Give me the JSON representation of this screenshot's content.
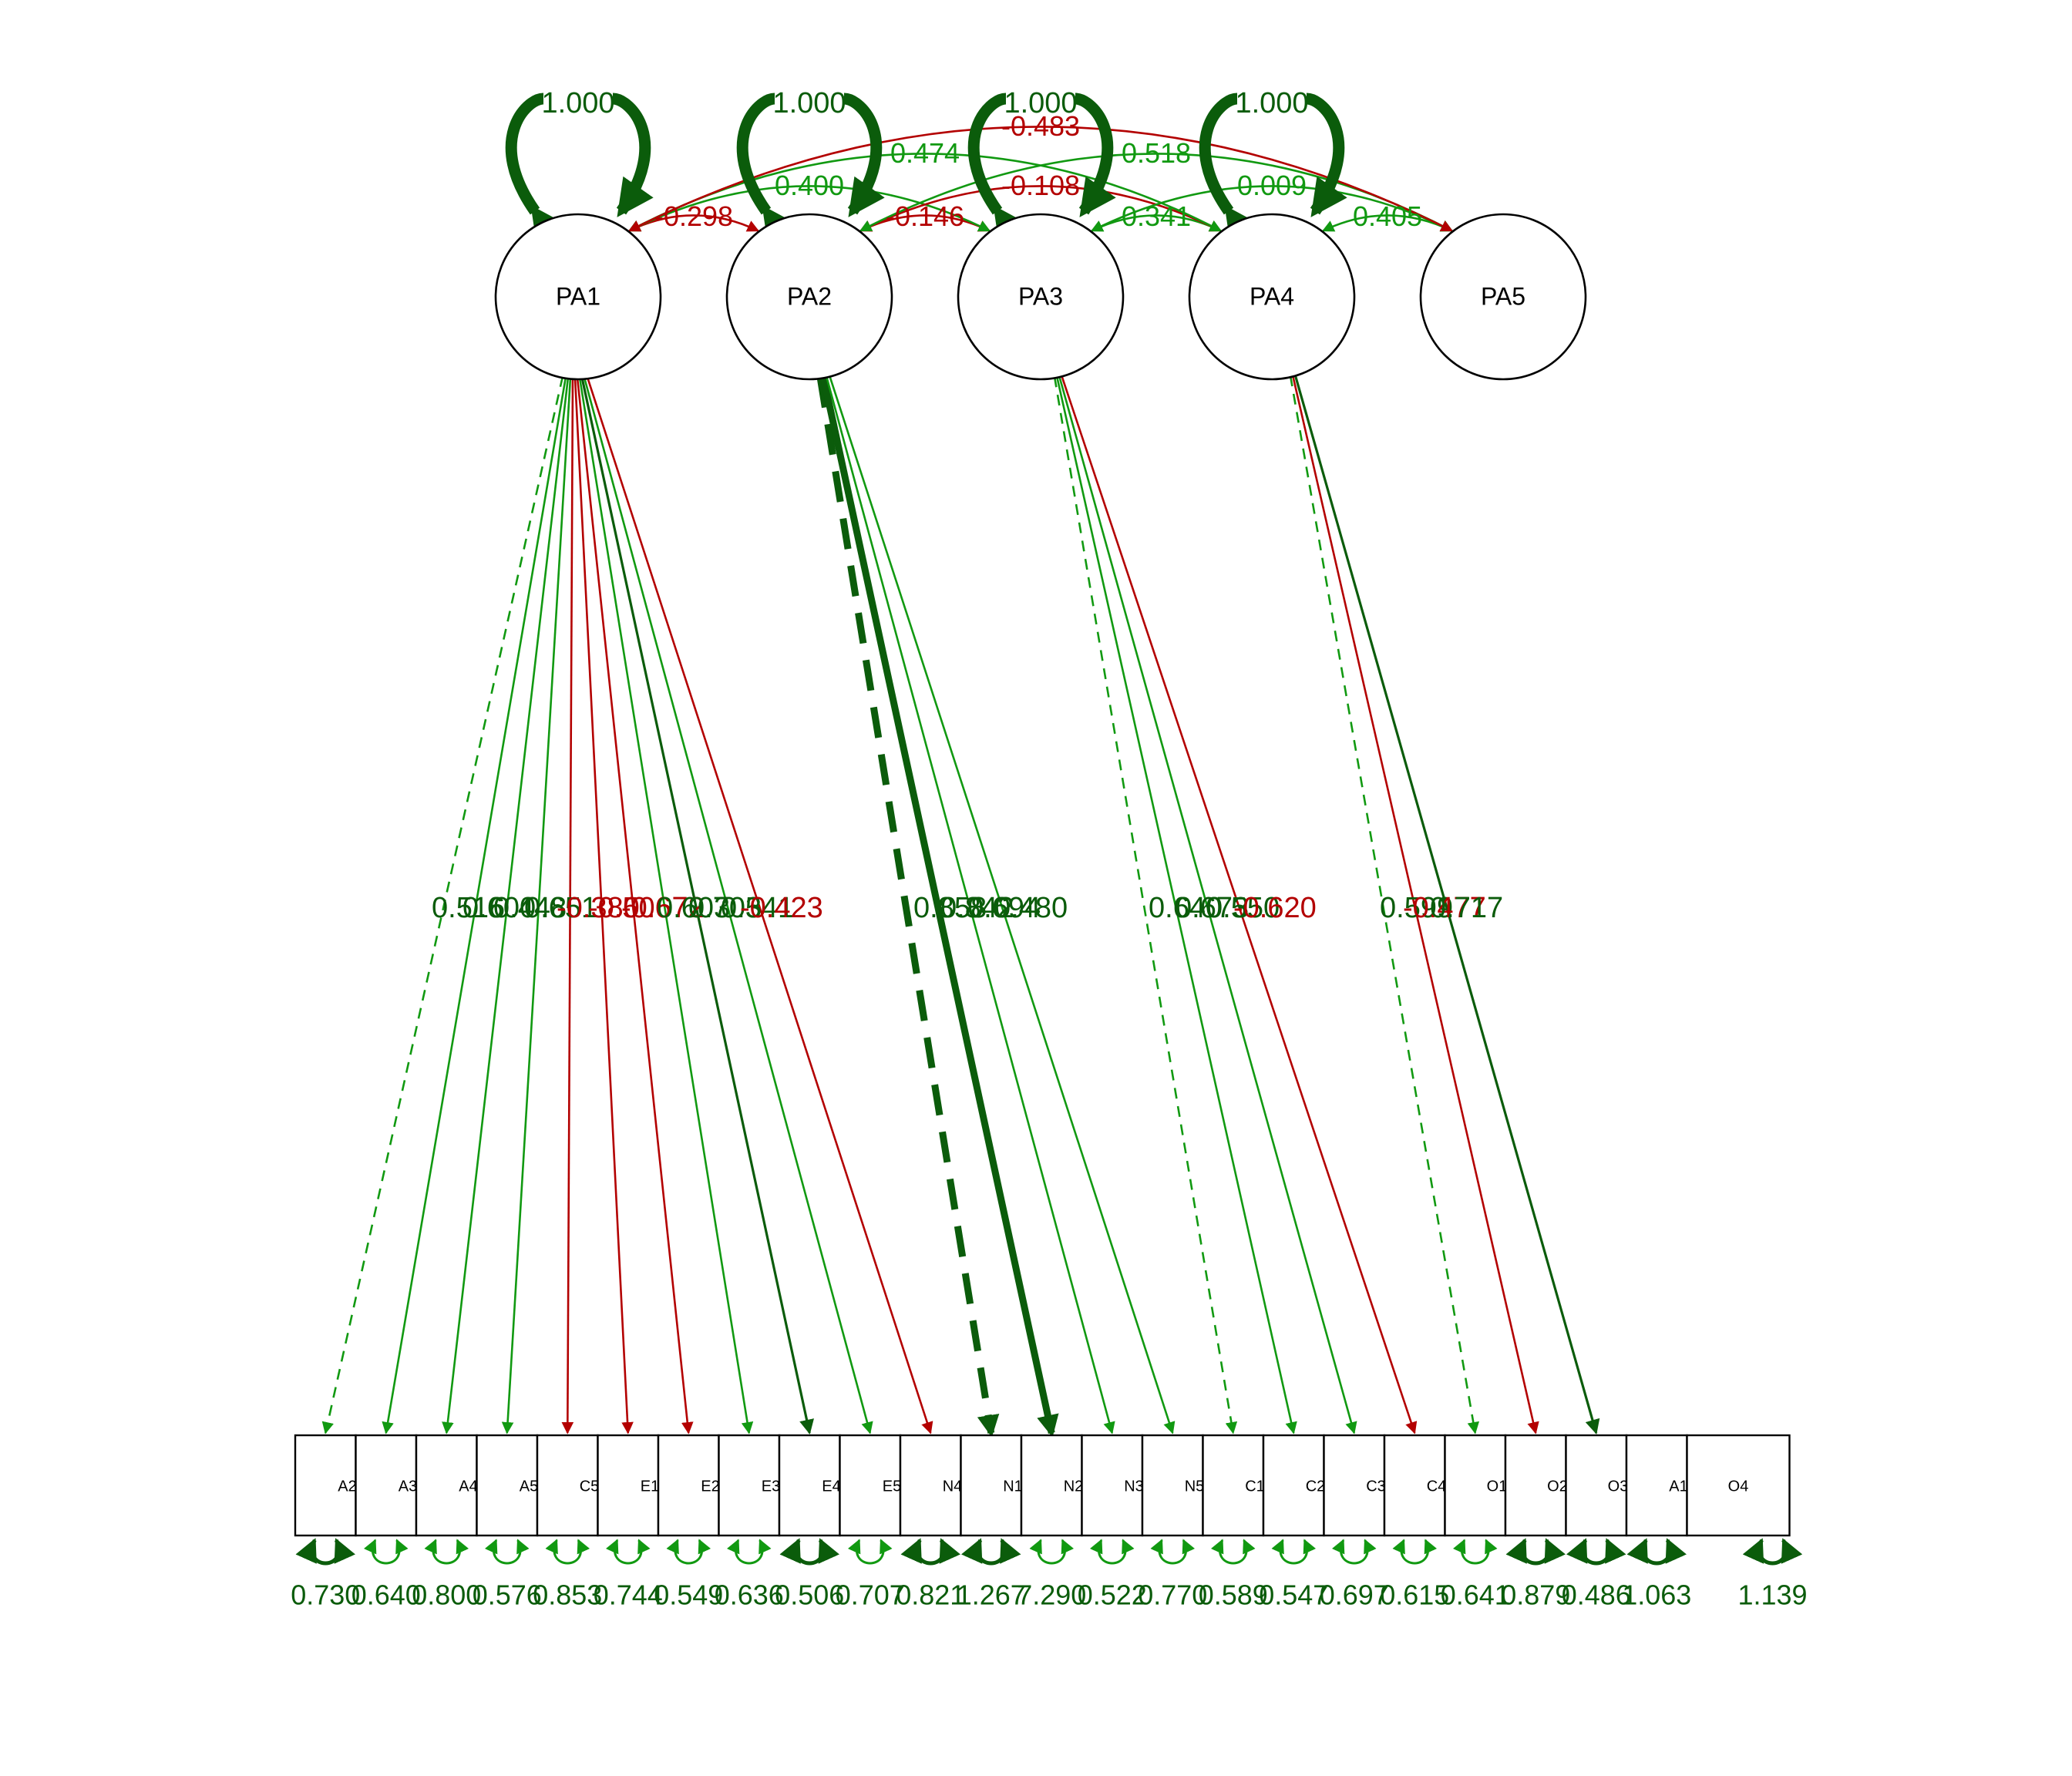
{
  "colors": {
    "positive": "#119911",
    "positive_strong": "#0b5c0b",
    "negative": "#b30000",
    "outline": "#000000",
    "background": "#ffffff"
  },
  "latents": [
    {
      "id": "PA1",
      "label": "PA1",
      "variance": "1.000"
    },
    {
      "id": "PA2",
      "label": "PA2",
      "variance": "1.000"
    },
    {
      "id": "PA3",
      "label": "PA3",
      "variance": "1.000"
    },
    {
      "id": "PA4",
      "label": "PA4",
      "variance": "1.000"
    },
    {
      "id": "PA5",
      "label": "PA5",
      "variance": ""
    }
  ],
  "observed": [
    {
      "id": "A2",
      "label": "A2",
      "residual": "0.730"
    },
    {
      "id": "A3",
      "label": "A3",
      "residual": "0.640"
    },
    {
      "id": "A4",
      "label": "A4",
      "residual": "0.800"
    },
    {
      "id": "A5",
      "label": "A5",
      "residual": "0.576"
    },
    {
      "id": "C5",
      "label": "C5",
      "residual": "0.853"
    },
    {
      "id": "E1",
      "label": "E1",
      "residual": "0.744"
    },
    {
      "id": "E2",
      "label": "E2",
      "residual": "0.549"
    },
    {
      "id": "E3",
      "label": "E3",
      "residual": "0.636"
    },
    {
      "id": "E4",
      "label": "E4",
      "residual": "0.506"
    },
    {
      "id": "E5",
      "label": "E5",
      "residual": "0.707"
    },
    {
      "id": "N4",
      "label": "N4",
      "residual": "0.821"
    },
    {
      "id": "N1",
      "label": "N1",
      "residual": "1.267"
    },
    {
      "id": "N2",
      "label": "N2",
      "residual": "7.290"
    },
    {
      "id": "N3",
      "label": "N3",
      "residual": "0.522"
    },
    {
      "id": "N5",
      "label": "N5",
      "residual": "0.770"
    },
    {
      "id": "C1",
      "label": "C1",
      "residual": "0.589"
    },
    {
      "id": "C2",
      "label": "C2",
      "residual": "0.547"
    },
    {
      "id": "C3",
      "label": "C3",
      "residual": "0.697"
    },
    {
      "id": "C4",
      "label": "C4",
      "residual": "0.615"
    },
    {
      "id": "O1",
      "label": "O1",
      "residual": "0.641"
    },
    {
      "id": "O2",
      "label": "O2",
      "residual": "0.879"
    },
    {
      "id": "O3",
      "label": "O3",
      "residual": "0.486"
    },
    {
      "id": "A1",
      "label": "A1",
      "residual": "1.063"
    },
    {
      "id": "O4",
      "label": "O4",
      "residual": "1.139"
    }
  ],
  "loadings": [
    {
      "from": "PA1",
      "to": "A2",
      "sign": "pos",
      "dashed": true,
      "strong": false
    },
    {
      "from": "PA1",
      "to": "A3",
      "sign": "pos",
      "dashed": false,
      "strong": false
    },
    {
      "from": "PA1",
      "to": "A4",
      "sign": "pos",
      "dashed": false,
      "strong": false
    },
    {
      "from": "PA1",
      "to": "A5",
      "sign": "pos",
      "dashed": false,
      "strong": false
    },
    {
      "from": "PA1",
      "to": "C5",
      "sign": "neg",
      "dashed": false,
      "strong": false
    },
    {
      "from": "PA1",
      "to": "E1",
      "sign": "neg",
      "dashed": false,
      "strong": false
    },
    {
      "from": "PA1",
      "to": "E2",
      "sign": "neg",
      "dashed": false,
      "strong": false
    },
    {
      "from": "PA1",
      "to": "E3",
      "sign": "pos",
      "dashed": false,
      "strong": false
    },
    {
      "from": "PA1",
      "to": "E4",
      "sign": "pos",
      "dashed": false,
      "strong": true
    },
    {
      "from": "PA1",
      "to": "E5",
      "sign": "pos",
      "dashed": false,
      "strong": false
    },
    {
      "from": "PA1",
      "to": "N4",
      "sign": "neg",
      "dashed": false,
      "strong": false
    },
    {
      "from": "PA2",
      "to": "N1",
      "sign": "pos",
      "dashed": true,
      "strong": true
    },
    {
      "from": "PA2",
      "to": "N2",
      "sign": "pos",
      "dashed": false,
      "strong": true
    },
    {
      "from": "PA2",
      "to": "N3",
      "sign": "pos",
      "dashed": false,
      "strong": false
    },
    {
      "from": "PA2",
      "to": "N5",
      "sign": "pos",
      "dashed": false,
      "strong": false
    },
    {
      "from": "PA3",
      "to": "C1",
      "sign": "pos",
      "dashed": true,
      "strong": false
    },
    {
      "from": "PA3",
      "to": "C2",
      "sign": "pos",
      "dashed": false,
      "strong": false
    },
    {
      "from": "PA3",
      "to": "C3",
      "sign": "pos",
      "dashed": false,
      "strong": false
    },
    {
      "from": "PA3",
      "to": "C4",
      "sign": "neg",
      "dashed": false,
      "strong": false
    },
    {
      "from": "PA4",
      "to": "O1",
      "sign": "pos",
      "dashed": true,
      "strong": false
    },
    {
      "from": "PA4",
      "to": "O2",
      "sign": "neg",
      "dashed": false,
      "strong": false
    },
    {
      "from": "PA4",
      "to": "O3",
      "sign": "pos",
      "dashed": false,
      "strong": true
    }
  ],
  "loading_labels": [
    {
      "text": "0.516",
      "sign": "pos"
    },
    {
      "text": "0.600",
      "sign": "pos"
    },
    {
      "text": "0.448",
      "sign": "pos"
    },
    {
      "text": "0.651",
      "sign": "pos"
    },
    {
      "text": "-0.380",
      "sign": "neg"
    },
    {
      "text": "-0.506",
      "sign": "neg"
    },
    {
      "text": "-0.672",
      "sign": "neg"
    },
    {
      "text": "0.603",
      "sign": "pos"
    },
    {
      "text": "0.703",
      "sign": "pos"
    },
    {
      "text": "0.541",
      "sign": "pos"
    },
    {
      "text": "-0.423",
      "sign": "neg"
    },
    {
      "text": "0.858",
      "sign": "pos"
    },
    {
      "text": "0.842",
      "sign": "pos"
    },
    {
      "text": "0.694",
      "sign": "pos"
    },
    {
      "text": "0.480",
      "sign": "pos"
    },
    {
      "text": "0.640",
      "sign": "pos"
    },
    {
      "text": "0.673",
      "sign": "pos"
    },
    {
      "text": "0.550",
      "sign": "pos"
    },
    {
      "text": "-0.620",
      "sign": "neg"
    },
    {
      "text": "0.599",
      "sign": "pos"
    },
    {
      "text": "-0.477",
      "sign": "neg"
    },
    {
      "text": "0.717",
      "sign": "pos"
    }
  ],
  "covariances": [
    {
      "from": "PA1",
      "to": "PA2",
      "value": "-0.298",
      "sign": "neg"
    },
    {
      "from": "PA2",
      "to": "PA3",
      "value": "-0.146",
      "sign": "neg"
    },
    {
      "from": "PA3",
      "to": "PA4",
      "value": "0.341",
      "sign": "pos"
    },
    {
      "from": "PA4",
      "to": "PA5",
      "value": "0.405",
      "sign": "pos"
    },
    {
      "from": "PA1",
      "to": "PA3",
      "value": "0.400",
      "sign": "pos"
    },
    {
      "from": "PA2",
      "to": "PA4",
      "value": "-0.108",
      "sign": "neg"
    },
    {
      "from": "PA3",
      "to": "PA5",
      "value": "0.009",
      "sign": "pos"
    },
    {
      "from": "PA1",
      "to": "PA4",
      "value": "0.474",
      "sign": "pos"
    },
    {
      "from": "PA2",
      "to": "PA5",
      "value": "0.518",
      "sign": "pos"
    },
    {
      "from": "PA1",
      "to": "PA5",
      "value": "-0.483",
      "sign": "neg"
    }
  ]
}
